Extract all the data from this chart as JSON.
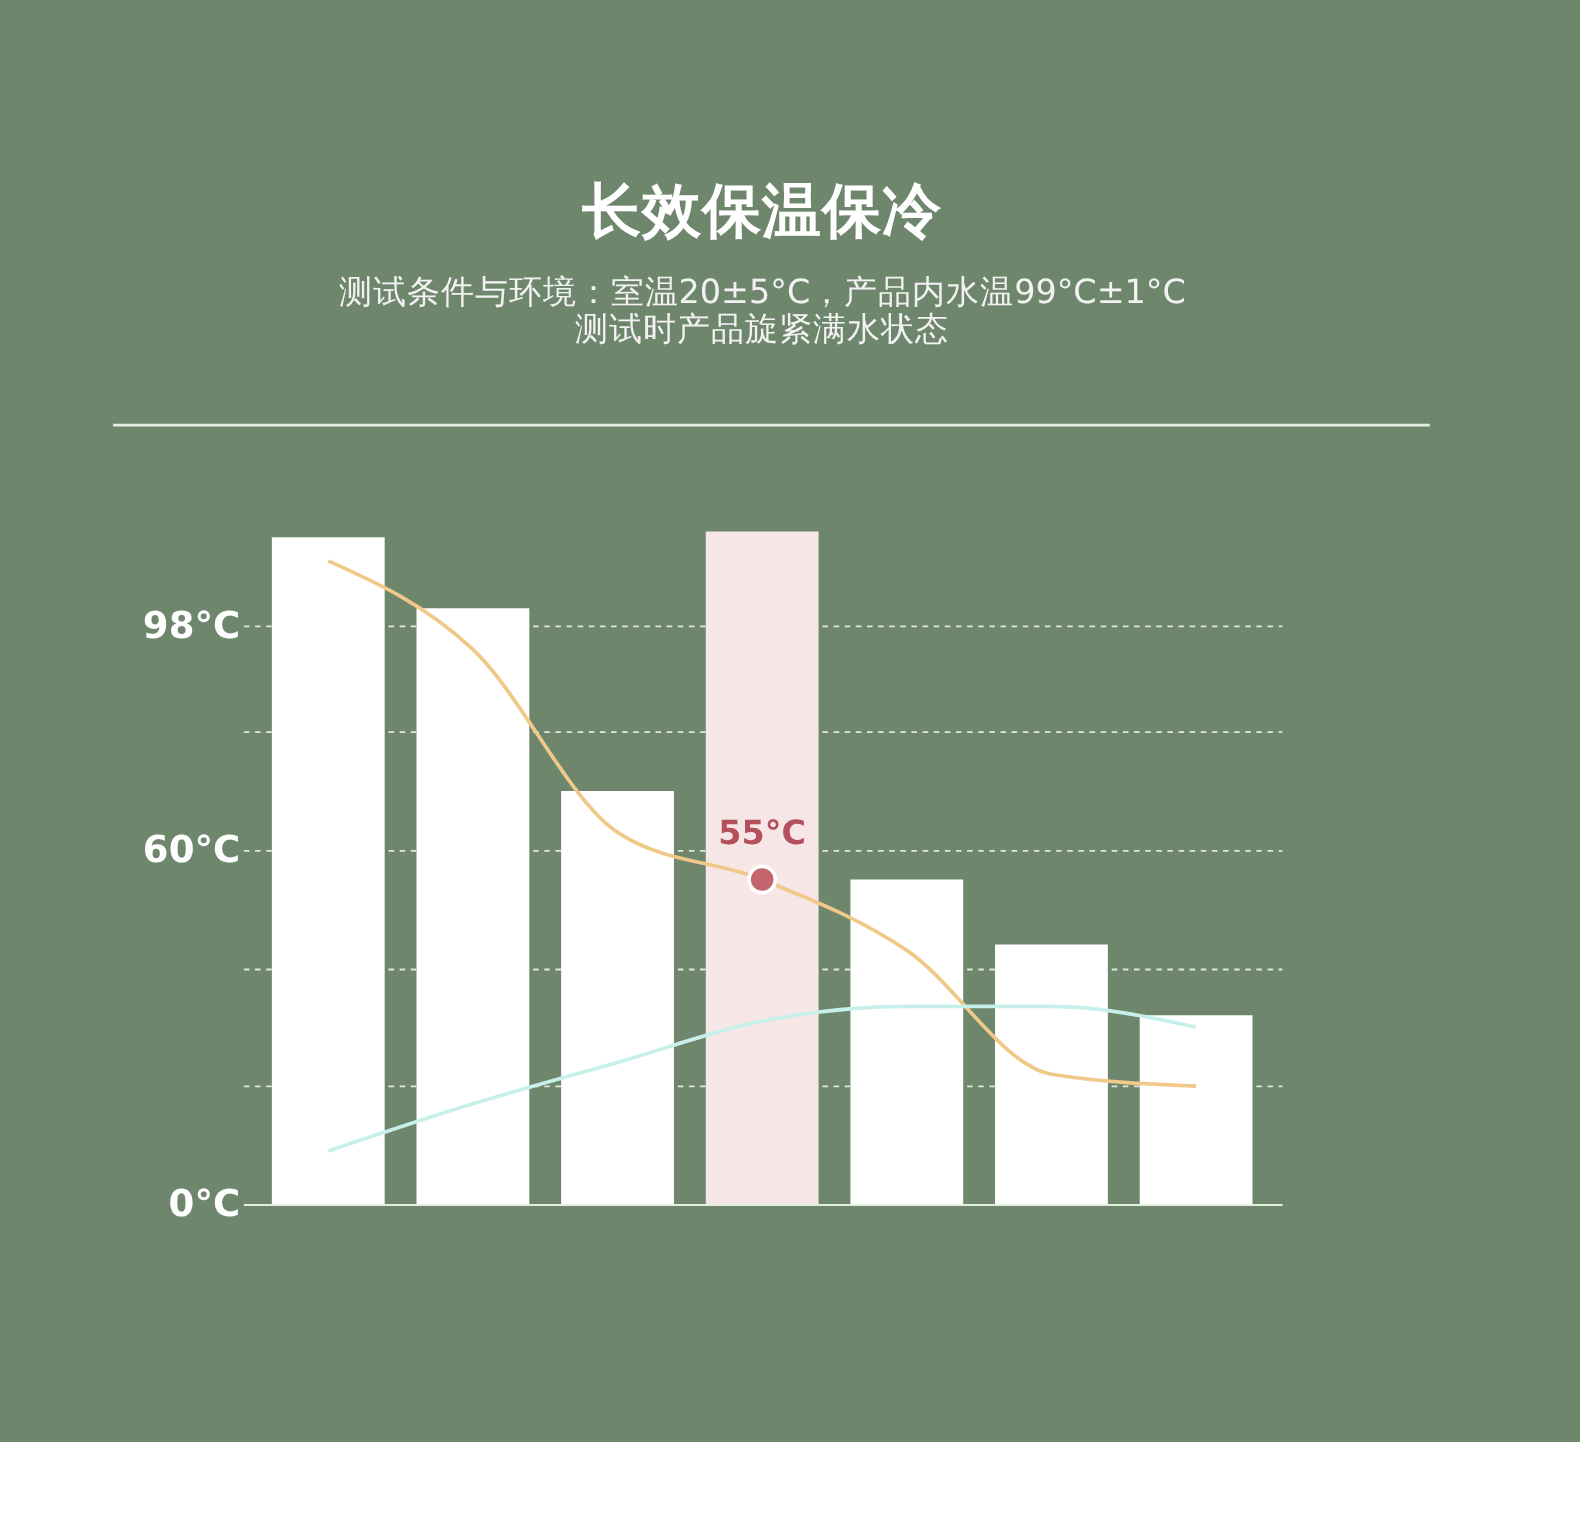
{
  "chart_data": {
    "type": "bar",
    "title": "长效保温保冷",
    "subtitle": "测试条件与环境：室温20±5°C，产品内水温99°C±1°C\n测试时产品旋紧满水状态",
    "categories": [
      null,
      null,
      null,
      null,
      null,
      null,
      null
    ],
    "values": [
      113,
      101,
      70,
      114,
      55,
      44,
      32
    ],
    "colors": [
      "#ffffff",
      "#ffffff",
      "#ffffff",
      "#f6e6e6",
      "#ffffff",
      "#ffffff",
      "#ffffff"
    ],
    "series": [
      {
        "type": "line",
        "color": "#f0c888",
        "values": [
          109,
          94,
          63,
          55,
          43,
          22,
          20
        ]
      },
      {
        "type": "line",
        "color": "#c8f0ea",
        "values": [
          9,
          17,
          24,
          31,
          33.5,
          33.5,
          30
        ]
      }
    ],
    "ylim": [
      0,
      132
    ],
    "yticks": [
      {
        "value": 0,
        "label": "0°C"
      },
      {
        "value": 20,
        "label": null
      },
      {
        "value": 40,
        "label": null
      },
      {
        "value": 60,
        "label": "60°C"
      },
      {
        "value": 80,
        "label": null
      },
      {
        "value": 98,
        "label": "98°C"
      }
    ],
    "grid": "y",
    "line_style": "solid",
    "annotations": [
      {
        "text": "55°C",
        "y": 55
      }
    ]
  }
}
